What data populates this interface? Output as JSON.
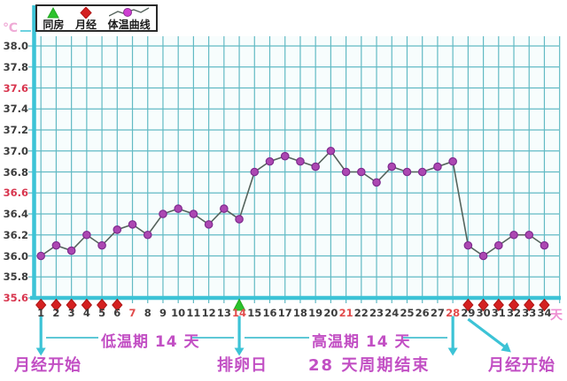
{
  "units": {
    "temperature": "℃",
    "day": "天"
  },
  "legend": {
    "items": [
      {
        "icon": "intercourse-triangle-icon",
        "label": "同房",
        "color": "#2cc32c"
      },
      {
        "icon": "menses-diamond-icon",
        "label": "月经",
        "color": "#d42020"
      },
      {
        "icon": "temperature-curve-icon",
        "label": "体温曲线",
        "color": "#ce3ed2"
      }
    ]
  },
  "chart_data": {
    "type": "line",
    "title": "",
    "xlabel": "天",
    "ylabel": "℃",
    "ylim": [
      35.6,
      38.0
    ],
    "ytick_step": 0.2,
    "yticks": [
      35.6,
      35.8,
      36.0,
      36.2,
      36.4,
      36.6,
      36.8,
      37.0,
      37.2,
      37.4,
      37.6,
      37.8,
      38.0
    ],
    "red_yticks": [
      35.6,
      36.6,
      37.6
    ],
    "x": [
      1,
      2,
      3,
      4,
      5,
      6,
      7,
      8,
      9,
      10,
      11,
      12,
      13,
      14,
      15,
      16,
      17,
      18,
      19,
      20,
      21,
      22,
      23,
      24,
      25,
      26,
      27,
      28,
      29,
      30,
      31,
      32,
      33,
      34
    ],
    "red_xticks": [
      7,
      14,
      21,
      28
    ],
    "series": [
      {
        "name": "体温曲线",
        "values": [
          36.0,
          36.1,
          36.05,
          36.2,
          36.1,
          36.25,
          36.3,
          36.2,
          36.4,
          36.45,
          36.4,
          36.3,
          36.45,
          36.35,
          36.8,
          36.9,
          36.95,
          36.9,
          36.85,
          37.0,
          36.8,
          36.8,
          36.7,
          36.85,
          36.8,
          36.8,
          36.85,
          36.9,
          36.1,
          36.0,
          36.1,
          36.2,
          36.2,
          36.1
        ]
      }
    ],
    "menses_days": [
      1,
      2,
      3,
      4,
      5,
      6,
      29,
      30,
      31,
      32,
      33,
      34
    ],
    "intercourse_days": [
      14
    ],
    "arrow_days": [
      1,
      14,
      28
    ],
    "diagonal_arrow_from_day": 29,
    "grid": true,
    "legend_position": "top-left"
  },
  "annotations": {
    "low_phase": "低温期 14 天",
    "high_phase": "高温期 14 天",
    "menses_start_left": "月经开始",
    "ovulation_day": "排卵日",
    "cycle_end": "28 天周期结束",
    "menses_start_right": "月经开始"
  },
  "colors": {
    "grid": "#62bac4",
    "axis": "#3cc3d6",
    "curve_line": "#55635c",
    "point_fill": "#ac47b2",
    "point_stroke": "#7e2b8e",
    "menses": "#d42020",
    "intercourse": "#2cc32c",
    "annotation_magenta": "#c24fc4",
    "ytick_red": "#d8354e",
    "xtick_red": "#e14b4b",
    "tick_dark": "#3c3c3c",
    "unit_pink": "#ee8ed2"
  }
}
